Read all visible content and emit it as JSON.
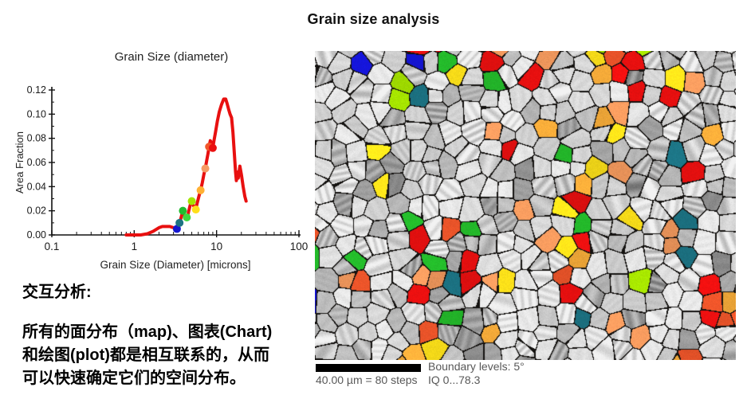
{
  "page": {
    "title": "Grain size analysis"
  },
  "annotation": {
    "heading": "交互分析:",
    "lines": [
      "所有的面分布（map)、图表(Chart)",
      "和绘图(plot)都是相互联系的，从而",
      "可以快速确定它们的空间分布。"
    ]
  },
  "micrograph": {
    "scale_label": "40.00 µm = 80 steps",
    "boundary_label": "Boundary levels: 5°",
    "iq_label": "IQ 0...78.3",
    "boundary_color": "#141210",
    "palette": [
      {
        "name": "red",
        "hex": "#ea1010",
        "w": 0.22
      },
      {
        "name": "orange-red",
        "hex": "#f2572b",
        "w": 0.16
      },
      {
        "name": "salmon",
        "hex": "#f49a5e",
        "w": 0.17
      },
      {
        "name": "orange",
        "hex": "#f8ad3a",
        "w": 0.14
      },
      {
        "name": "yellow",
        "hex": "#ffe31a",
        "w": 0.1
      },
      {
        "name": "chartreuse",
        "hex": "#a6e400",
        "w": 0.07
      },
      {
        "name": "green",
        "hex": "#25c02c",
        "w": 0.14
      },
      {
        "name": "teal",
        "hex": "#1d7788",
        "w": 0.05
      },
      {
        "name": "blue",
        "hex": "#1515d6",
        "w": 0.05
      }
    ]
  },
  "chart_data": {
    "type": "line",
    "title": "Grain Size (diameter)",
    "xlabel": "Grain Size (Diameter) [microns]",
    "ylabel": "Area Fraction",
    "xscale": "log",
    "xlim": [
      0.1,
      100
    ],
    "ylim": [
      0,
      0.12
    ],
    "xticks": [
      0.1,
      1,
      10,
      100
    ],
    "yticks": [
      0,
      0.02,
      0.04,
      0.06,
      0.08,
      0.1,
      0.12
    ],
    "grid": false,
    "line_color": "#e81010",
    "series": [
      {
        "name": "area fraction vs diameter",
        "points": [
          [
            0.8,
            0.0
          ],
          [
            1.2,
            0.0
          ],
          [
            1.45,
            0.001
          ],
          [
            1.7,
            0.003
          ],
          [
            2.0,
            0.006
          ],
          [
            2.2,
            0.007
          ],
          [
            2.7,
            0.007
          ],
          [
            3.0,
            0.006
          ],
          [
            3.3,
            0.005
          ],
          [
            3.45,
            0.008
          ],
          [
            3.55,
            0.01
          ],
          [
            3.7,
            0.014
          ],
          [
            3.9,
            0.02
          ],
          [
            4.05,
            0.017
          ],
          [
            4.25,
            0.015
          ],
          [
            4.4,
            0.014
          ],
          [
            4.6,
            0.02
          ],
          [
            4.8,
            0.025
          ],
          [
            5.0,
            0.028
          ],
          [
            5.2,
            0.025
          ],
          [
            5.45,
            0.022
          ],
          [
            5.6,
            0.021
          ],
          [
            5.8,
            0.026
          ],
          [
            6.1,
            0.032
          ],
          [
            6.4,
            0.037
          ],
          [
            6.7,
            0.043
          ],
          [
            7.0,
            0.05
          ],
          [
            7.3,
            0.055
          ],
          [
            7.6,
            0.062
          ],
          [
            7.9,
            0.068
          ],
          [
            8.1,
            0.073
          ],
          [
            8.4,
            0.078
          ],
          [
            8.7,
            0.076
          ],
          [
            9.0,
            0.072
          ],
          [
            9.3,
            0.078
          ],
          [
            9.7,
            0.085
          ],
          [
            10.2,
            0.094
          ],
          [
            10.8,
            0.102
          ],
          [
            11.5,
            0.108
          ],
          [
            12.2,
            0.1125
          ],
          [
            12.9,
            0.1125
          ],
          [
            13.4,
            0.109
          ],
          [
            14.0,
            0.104
          ],
          [
            14.6,
            0.1
          ],
          [
            15.2,
            0.097
          ],
          [
            15.8,
            0.085
          ],
          [
            16.4,
            0.068
          ],
          [
            17.0,
            0.052
          ],
          [
            17.4,
            0.045
          ],
          [
            17.9,
            0.052
          ],
          [
            18.3,
            0.047
          ],
          [
            19.2,
            0.057
          ],
          [
            20.0,
            0.05
          ],
          [
            21.0,
            0.04
          ],
          [
            22.0,
            0.032
          ],
          [
            22.8,
            0.028
          ]
        ]
      }
    ],
    "markers": [
      {
        "x": 3.3,
        "y": 0.005,
        "color": "#1617cf",
        "name": "blue"
      },
      {
        "x": 3.55,
        "y": 0.01,
        "color": "#1d7382",
        "name": "teal"
      },
      {
        "x": 3.9,
        "y": 0.02,
        "color": "#21bd2f",
        "name": "green"
      },
      {
        "x": 4.35,
        "y": 0.0145,
        "color": "#3fd93f",
        "name": "light-green"
      },
      {
        "x": 5.0,
        "y": 0.028,
        "color": "#a4e400",
        "name": "chartreuse"
      },
      {
        "x": 5.6,
        "y": 0.021,
        "color": "#ffdf1a",
        "name": "yellow"
      },
      {
        "x": 6.4,
        "y": 0.037,
        "color": "#ffb033",
        "name": "orange"
      },
      {
        "x": 7.3,
        "y": 0.055,
        "color": "#f69b64",
        "name": "salmon"
      },
      {
        "x": 8.1,
        "y": 0.073,
        "color": "#f2572b",
        "name": "orange-red"
      },
      {
        "x": 9.0,
        "y": 0.072,
        "color": "#ea1010",
        "name": "red"
      }
    ]
  }
}
